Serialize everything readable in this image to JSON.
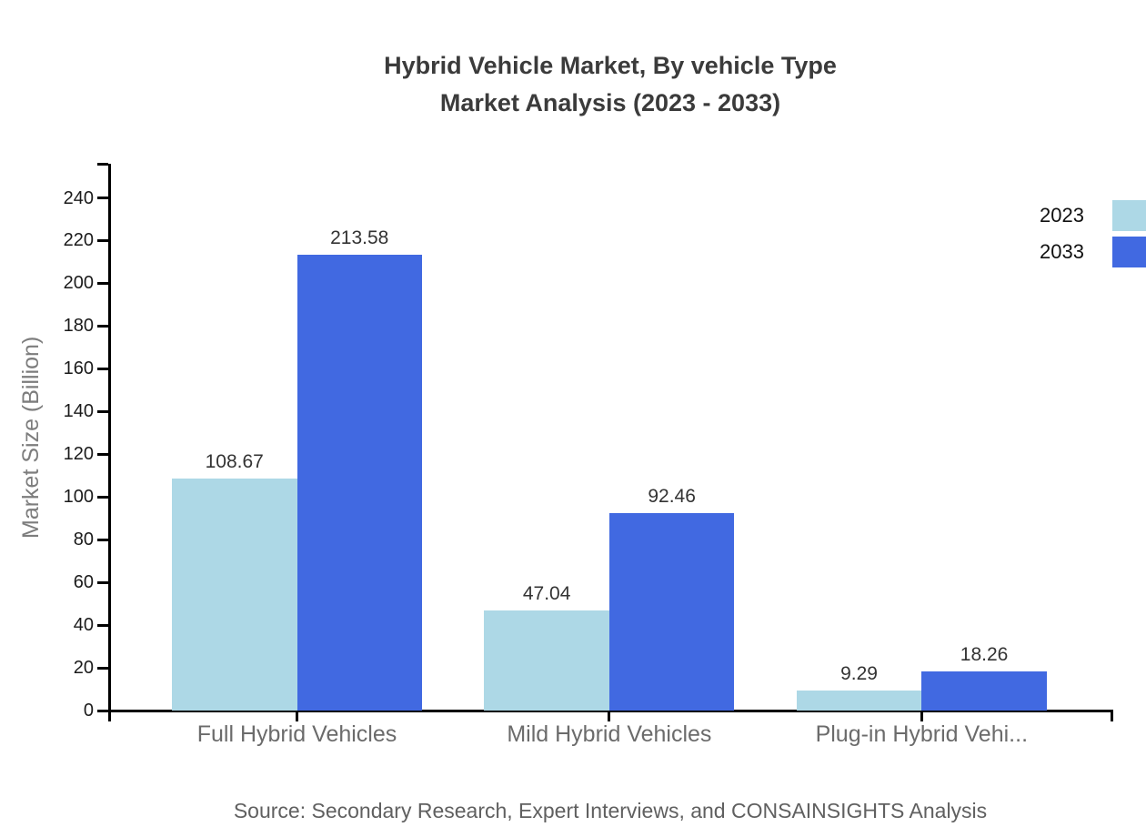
{
  "title": {
    "line1": "Hybrid Vehicle Market, By vehicle Type",
    "line2": "Market Analysis (2023 - 2033)"
  },
  "source": "Source: Secondary Research, Expert Interviews, and CONSAINSIGHTS Analysis",
  "colors": {
    "series_2023": "#ADD8E6",
    "series_2033": "#4169E1",
    "axis_line": "#000000",
    "title_text": "#3b3b3b",
    "category_text": "#6b6b6b",
    "y_axis_title_text": "#7d7d7d",
    "tick_label_text": "#1a1a1a",
    "value_label_text": "#333333",
    "source_text": "#606060"
  },
  "chart_data": {
    "type": "bar",
    "title": "Hybrid Vehicle Market, By vehicle Type Market Analysis (2023 - 2033)",
    "categories": [
      "Full Hybrid Vehicles",
      "Mild Hybrid Vehicles",
      "Plug-in Hybrid Vehi..."
    ],
    "series": [
      {
        "name": "2023",
        "color": "#ADD8E6",
        "values": [
          108.67,
          47.04,
          9.29
        ]
      },
      {
        "name": "2033",
        "color": "#4169E1",
        "values": [
          213.58,
          92.46,
          18.26
        ]
      }
    ],
    "value_labels": {
      "2023": [
        "108.67",
        "47.04",
        "9.29"
      ],
      "2033": [
        "213.58",
        "92.46",
        "18.26"
      ]
    },
    "xlabel": "",
    "ylabel": "Market Size (Billion)",
    "ylim": [
      0,
      240
    ],
    "ytick_step": 20,
    "ytick_labels": [
      "0",
      "20",
      "40",
      "60",
      "80",
      "100",
      "120",
      "140",
      "160",
      "180",
      "200",
      "220",
      "240"
    ],
    "grid": false,
    "legend_position": "top-right"
  }
}
